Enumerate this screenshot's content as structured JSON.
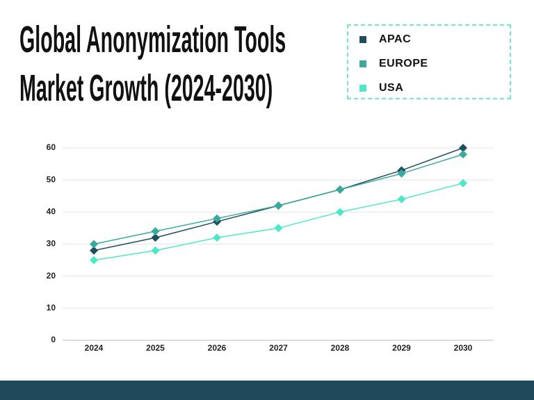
{
  "chart_data": {
    "type": "line",
    "title": "Global Anonymization Tools Market Growth (2024-2030)",
    "categories": [
      "2024",
      "2025",
      "2026",
      "2027",
      "2028",
      "2029",
      "2030"
    ],
    "series": [
      {
        "name": "APAC",
        "color": "#1f4e5f",
        "values": [
          28,
          32,
          37,
          42,
          47,
          53,
          60
        ]
      },
      {
        "name": "EUROPE",
        "color": "#3aaa9a",
        "values": [
          30,
          34,
          38,
          42,
          47,
          52,
          58
        ]
      },
      {
        "name": "USA",
        "color": "#4ee8c8",
        "values": [
          25,
          28,
          32,
          35,
          40,
          44,
          49
        ]
      }
    ],
    "ylim": [
      0,
      60
    ],
    "yticks": [
      0,
      10,
      20,
      30,
      40,
      50,
      60
    ],
    "grid": true
  }
}
